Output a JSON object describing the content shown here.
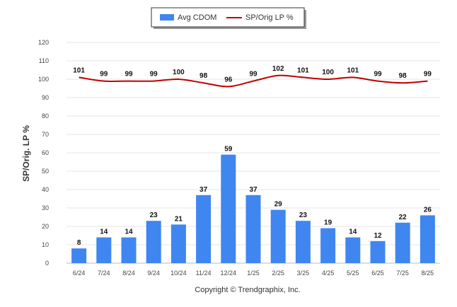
{
  "chart_data": {
    "type": "bar",
    "categories": [
      "6/24",
      "7/24",
      "8/24",
      "9/24",
      "10/24",
      "11/24",
      "12/24",
      "1/25",
      "2/25",
      "3/25",
      "4/25",
      "5/25",
      "6/25",
      "7/25",
      "8/25"
    ],
    "series": [
      {
        "name": "Avg CDOM",
        "type": "bar",
        "color": "#3f86f0",
        "values": [
          8,
          14,
          14,
          23,
          21,
          37,
          59,
          37,
          29,
          23,
          19,
          14,
          12,
          22,
          26
        ]
      },
      {
        "name": "SP/Orig LP %",
        "type": "line",
        "color": "#c00000",
        "values": [
          101,
          99,
          99,
          99,
          100,
          98,
          96,
          99,
          102,
          101,
          100,
          101,
          99,
          98,
          99
        ]
      }
    ],
    "ylabel": "SP/Orig. LP %",
    "ylim": [
      0,
      120
    ],
    "yticks": [
      0,
      10,
      20,
      30,
      40,
      50,
      60,
      70,
      80,
      90,
      100,
      110,
      120
    ],
    "grid": true,
    "legend_placement": "top-center"
  },
  "footer": {
    "copyright": "Copyright © Trendgraphix, Inc."
  }
}
